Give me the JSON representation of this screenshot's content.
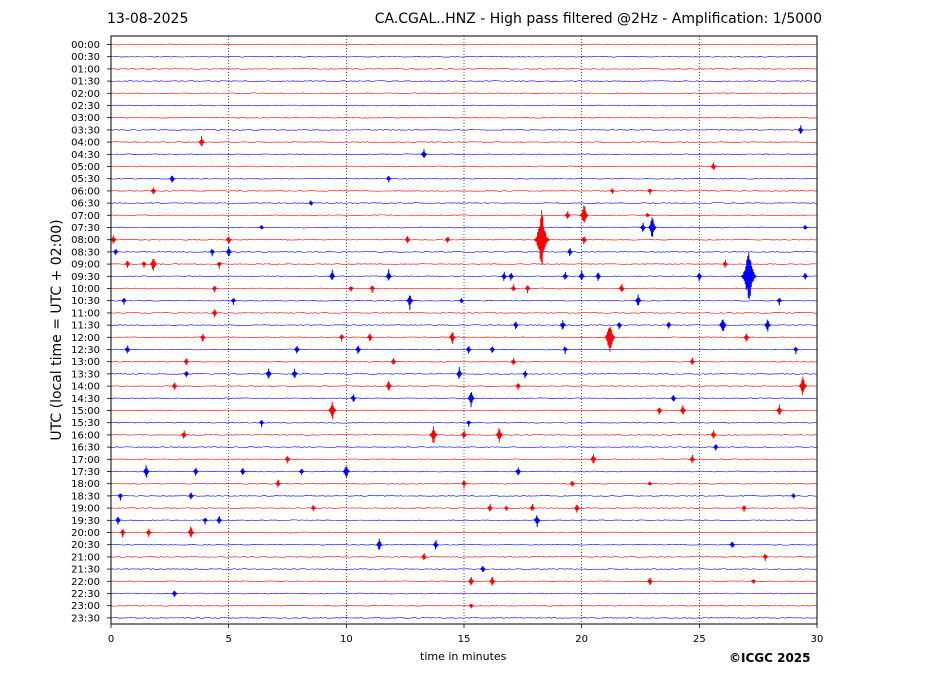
{
  "header": {
    "date": "13-08-2025",
    "title": "CA.CGAL..HNZ - High pass filtered @2Hz - Amplification: 1/5000"
  },
  "footer": {
    "copyright": "©ICGC 2025"
  },
  "colors": {
    "red": "#ff0000",
    "blue": "#0000ff",
    "frame": "#000000",
    "vgrid": "#000080"
  },
  "chart_data": {
    "type": "line",
    "title": "CA.CGAL..HNZ - High pass filtered @2Hz - Amplification: 1/5000",
    "xlabel": "time in minutes",
    "ylabel": "UTC (local time = UTC + 02:00)",
    "xlim": [
      0,
      30
    ],
    "xticks": [
      0,
      5,
      10,
      15,
      20,
      25,
      30
    ],
    "vertical_gridlines": [
      5,
      10,
      15,
      20,
      25
    ],
    "series_colors_alternating": [
      "red",
      "blue"
    ],
    "rows": [
      "00:00",
      "00:30",
      "01:00",
      "01:30",
      "02:00",
      "02:30",
      "03:00",
      "03:30",
      "04:00",
      "04:30",
      "05:00",
      "05:30",
      "06:00",
      "06:30",
      "07:00",
      "07:30",
      "08:00",
      "08:30",
      "09:00",
      "09:30",
      "10:00",
      "10:30",
      "11:00",
      "11:30",
      "12:00",
      "12:30",
      "13:00",
      "13:30",
      "14:00",
      "14:30",
      "15:00",
      "15:30",
      "16:00",
      "16:30",
      "17:00",
      "17:30",
      "18:00",
      "18:30",
      "19:00",
      "19:30",
      "20:00",
      "20:30",
      "21:00",
      "21:30",
      "22:00",
      "22:30",
      "23:00",
      "23:30"
    ],
    "events": [
      {
        "row": "03:30",
        "t": 29.3,
        "a": 0.5
      },
      {
        "row": "04:00",
        "t": 3.85,
        "a": 0.6
      },
      {
        "row": "04:30",
        "t": 13.3,
        "a": 0.6
      },
      {
        "row": "05:00",
        "t": 25.6,
        "a": 0.5
      },
      {
        "row": "05:30",
        "t": 2.6,
        "a": 0.5
      },
      {
        "row": "05:30",
        "t": 11.8,
        "a": 0.4
      },
      {
        "row": "06:00",
        "t": 1.8,
        "a": 0.45
      },
      {
        "row": "06:00",
        "t": 21.3,
        "a": 0.3
      },
      {
        "row": "06:00",
        "t": 22.9,
        "a": 0.35
      },
      {
        "row": "06:30",
        "t": 8.5,
        "a": 0.3
      },
      {
        "row": "07:00",
        "t": 19.4,
        "a": 0.5
      },
      {
        "row": "07:00",
        "t": 20.1,
        "a": 1.1
      },
      {
        "row": "07:00",
        "t": 22.8,
        "a": 0.3
      },
      {
        "row": "07:30",
        "t": 6.4,
        "a": 0.3
      },
      {
        "row": "07:30",
        "t": 22.6,
        "a": 0.5
      },
      {
        "row": "07:30",
        "t": 23.0,
        "a": 1.1
      },
      {
        "row": "07:30",
        "t": 29.5,
        "a": 0.3
      },
      {
        "row": "08:00",
        "t": 0.1,
        "a": 0.5
      },
      {
        "row": "08:00",
        "t": 5.0,
        "a": 0.5
      },
      {
        "row": "08:00",
        "t": 12.6,
        "a": 0.45
      },
      {
        "row": "08:00",
        "t": 14.3,
        "a": 0.4
      },
      {
        "row": "08:00",
        "t": 18.3,
        "a": 2.6
      },
      {
        "row": "08:00",
        "t": 20.1,
        "a": 0.5
      },
      {
        "row": "08:30",
        "t": 0.2,
        "a": 0.4
      },
      {
        "row": "08:30",
        "t": 4.3,
        "a": 0.4
      },
      {
        "row": "08:30",
        "t": 5.0,
        "a": 0.6
      },
      {
        "row": "08:30",
        "t": 19.5,
        "a": 0.5
      },
      {
        "row": "09:00",
        "t": 0.7,
        "a": 0.4
      },
      {
        "row": "09:00",
        "t": 1.4,
        "a": 0.4
      },
      {
        "row": "09:00",
        "t": 1.8,
        "a": 0.8
      },
      {
        "row": "09:00",
        "t": 4.6,
        "a": 0.4
      },
      {
        "row": "09:00",
        "t": 26.1,
        "a": 0.45
      },
      {
        "row": "09:30",
        "t": 9.4,
        "a": 0.6
      },
      {
        "row": "09:30",
        "t": 11.8,
        "a": 0.6
      },
      {
        "row": "09:30",
        "t": 16.7,
        "a": 0.5
      },
      {
        "row": "09:30",
        "t": 17.0,
        "a": 0.5
      },
      {
        "row": "09:30",
        "t": 19.3,
        "a": 0.5
      },
      {
        "row": "09:30",
        "t": 20.0,
        "a": 0.6
      },
      {
        "row": "09:30",
        "t": 20.7,
        "a": 0.5
      },
      {
        "row": "09:30",
        "t": 25.0,
        "a": 0.5
      },
      {
        "row": "09:30",
        "t": 27.1,
        "a": 2.6
      },
      {
        "row": "09:30",
        "t": 29.5,
        "a": 0.4
      },
      {
        "row": "10:00",
        "t": 4.4,
        "a": 0.4
      },
      {
        "row": "10:00",
        "t": 10.2,
        "a": 0.4
      },
      {
        "row": "10:00",
        "t": 11.1,
        "a": 0.4
      },
      {
        "row": "10:00",
        "t": 17.1,
        "a": 0.45
      },
      {
        "row": "10:00",
        "t": 17.7,
        "a": 0.4
      },
      {
        "row": "10:00",
        "t": 21.7,
        "a": 0.5
      },
      {
        "row": "10:30",
        "t": 0.55,
        "a": 0.4
      },
      {
        "row": "10:30",
        "t": 5.2,
        "a": 0.4
      },
      {
        "row": "10:30",
        "t": 12.7,
        "a": 0.8
      },
      {
        "row": "10:30",
        "t": 14.9,
        "a": 0.3
      },
      {
        "row": "10:30",
        "t": 22.4,
        "a": 0.6
      },
      {
        "row": "10:30",
        "t": 28.4,
        "a": 0.4
      },
      {
        "row": "11:00",
        "t": 4.4,
        "a": 0.5
      },
      {
        "row": "11:30",
        "t": 17.2,
        "a": 0.45
      },
      {
        "row": "11:30",
        "t": 19.2,
        "a": 0.6
      },
      {
        "row": "11:30",
        "t": 21.6,
        "a": 0.45
      },
      {
        "row": "11:30",
        "t": 23.7,
        "a": 0.4
      },
      {
        "row": "11:30",
        "t": 26.0,
        "a": 0.9
      },
      {
        "row": "11:30",
        "t": 27.9,
        "a": 0.7
      },
      {
        "row": "12:00",
        "t": 3.9,
        "a": 0.45
      },
      {
        "row": "12:00",
        "t": 9.8,
        "a": 0.4
      },
      {
        "row": "12:00",
        "t": 11.0,
        "a": 0.5
      },
      {
        "row": "12:00",
        "t": 14.5,
        "a": 0.7
      },
      {
        "row": "12:00",
        "t": 21.2,
        "a": 1.6
      },
      {
        "row": "12:00",
        "t": 27.0,
        "a": 0.5
      },
      {
        "row": "12:30",
        "t": 0.7,
        "a": 0.5
      },
      {
        "row": "12:30",
        "t": 7.9,
        "a": 0.5
      },
      {
        "row": "12:30",
        "t": 10.5,
        "a": 0.5
      },
      {
        "row": "12:30",
        "t": 15.2,
        "a": 0.45
      },
      {
        "row": "12:30",
        "t": 16.2,
        "a": 0.45
      },
      {
        "row": "12:30",
        "t": 19.3,
        "a": 0.4
      },
      {
        "row": "12:30",
        "t": 29.1,
        "a": 0.4
      },
      {
        "row": "13:00",
        "t": 3.2,
        "a": 0.4
      },
      {
        "row": "13:00",
        "t": 12.0,
        "a": 0.45
      },
      {
        "row": "13:00",
        "t": 17.1,
        "a": 0.45
      },
      {
        "row": "13:00",
        "t": 24.7,
        "a": 0.45
      },
      {
        "row": "13:30",
        "t": 3.2,
        "a": 0.4
      },
      {
        "row": "13:30",
        "t": 6.7,
        "a": 0.6
      },
      {
        "row": "13:30",
        "t": 7.8,
        "a": 0.6
      },
      {
        "row": "13:30",
        "t": 14.8,
        "a": 0.6
      },
      {
        "row": "13:30",
        "t": 17.6,
        "a": 0.45
      },
      {
        "row": "14:00",
        "t": 2.7,
        "a": 0.45
      },
      {
        "row": "14:00",
        "t": 11.8,
        "a": 0.6
      },
      {
        "row": "14:00",
        "t": 17.3,
        "a": 0.4
      },
      {
        "row": "14:00",
        "t": 29.4,
        "a": 1.0
      },
      {
        "row": "14:30",
        "t": 10.3,
        "a": 0.5
      },
      {
        "row": "14:30",
        "t": 15.3,
        "a": 0.8
      },
      {
        "row": "14:30",
        "t": 23.9,
        "a": 0.45
      },
      {
        "row": "15:00",
        "t": 9.4,
        "a": 1.0
      },
      {
        "row": "15:00",
        "t": 23.3,
        "a": 0.45
      },
      {
        "row": "15:00",
        "t": 24.3,
        "a": 0.6
      },
      {
        "row": "15:00",
        "t": 28.4,
        "a": 0.6
      },
      {
        "row": "15:30",
        "t": 6.4,
        "a": 0.4
      },
      {
        "row": "15:30",
        "t": 15.2,
        "a": 0.4
      },
      {
        "row": "16:00",
        "t": 3.1,
        "a": 0.5
      },
      {
        "row": "16:00",
        "t": 13.7,
        "a": 1.0
      },
      {
        "row": "16:00",
        "t": 15.0,
        "a": 0.5
      },
      {
        "row": "16:00",
        "t": 16.5,
        "a": 0.8
      },
      {
        "row": "16:00",
        "t": 25.6,
        "a": 0.5
      },
      {
        "row": "16:30",
        "t": 25.7,
        "a": 0.4
      },
      {
        "row": "17:00",
        "t": 7.5,
        "a": 0.45
      },
      {
        "row": "17:00",
        "t": 20.5,
        "a": 0.6
      },
      {
        "row": "17:00",
        "t": 24.7,
        "a": 0.45
      },
      {
        "row": "17:30",
        "t": 1.5,
        "a": 0.7
      },
      {
        "row": "17:30",
        "t": 3.6,
        "a": 0.45
      },
      {
        "row": "17:30",
        "t": 5.6,
        "a": 0.5
      },
      {
        "row": "17:30",
        "t": 8.1,
        "a": 0.4
      },
      {
        "row": "17:30",
        "t": 10.0,
        "a": 0.8
      },
      {
        "row": "17:30",
        "t": 17.3,
        "a": 0.5
      },
      {
        "row": "18:00",
        "t": 7.1,
        "a": 0.45
      },
      {
        "row": "18:00",
        "t": 15.0,
        "a": 0.4
      },
      {
        "row": "18:00",
        "t": 19.6,
        "a": 0.4
      },
      {
        "row": "18:00",
        "t": 22.9,
        "a": 0.3
      },
      {
        "row": "18:30",
        "t": 0.4,
        "a": 0.4
      },
      {
        "row": "18:30",
        "t": 3.4,
        "a": 0.45
      },
      {
        "row": "18:30",
        "t": 29.0,
        "a": 0.3
      },
      {
        "row": "19:00",
        "t": 8.6,
        "a": 0.4
      },
      {
        "row": "19:00",
        "t": 16.1,
        "a": 0.45
      },
      {
        "row": "19:00",
        "t": 16.8,
        "a": 0.3
      },
      {
        "row": "19:00",
        "t": 17.9,
        "a": 0.45
      },
      {
        "row": "19:00",
        "t": 19.8,
        "a": 0.5
      },
      {
        "row": "19:00",
        "t": 26.9,
        "a": 0.4
      },
      {
        "row": "19:30",
        "t": 0.3,
        "a": 0.45
      },
      {
        "row": "19:30",
        "t": 4.0,
        "a": 0.4
      },
      {
        "row": "19:30",
        "t": 4.6,
        "a": 0.5
      },
      {
        "row": "19:30",
        "t": 18.1,
        "a": 0.7
      },
      {
        "row": "20:00",
        "t": 0.5,
        "a": 0.5
      },
      {
        "row": "20:00",
        "t": 1.6,
        "a": 0.45
      },
      {
        "row": "20:00",
        "t": 3.4,
        "a": 0.7
      },
      {
        "row": "20:30",
        "t": 11.4,
        "a": 0.6
      },
      {
        "row": "20:30",
        "t": 13.8,
        "a": 0.5
      },
      {
        "row": "20:30",
        "t": 26.4,
        "a": 0.45
      },
      {
        "row": "21:00",
        "t": 13.3,
        "a": 0.45
      },
      {
        "row": "21:00",
        "t": 27.8,
        "a": 0.4
      },
      {
        "row": "21:30",
        "t": 15.8,
        "a": 0.45
      },
      {
        "row": "22:00",
        "t": 15.3,
        "a": 0.5
      },
      {
        "row": "22:00",
        "t": 16.2,
        "a": 0.5
      },
      {
        "row": "22:00",
        "t": 22.9,
        "a": 0.5
      },
      {
        "row": "22:00",
        "t": 27.3,
        "a": 0.3
      },
      {
        "row": "22:30",
        "t": 2.7,
        "a": 0.45
      },
      {
        "row": "23:00",
        "t": 15.3,
        "a": 0.3
      }
    ]
  }
}
